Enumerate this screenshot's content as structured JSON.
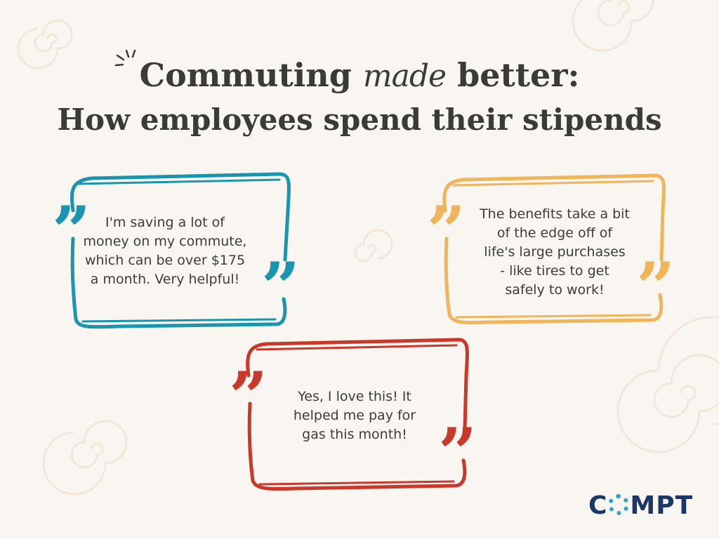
{
  "title": {
    "line1_before": "Commuting",
    "line1_script": "made",
    "line1_after": "better:",
    "line2": "How employees spend their stipends"
  },
  "colors": {
    "background": "#f9f6f1",
    "text": "#3c3c38",
    "teal": "#1a95ad",
    "orange": "#f0b55a",
    "red": "#c8392b",
    "logo_navy": "#1c3765",
    "logo_blue": "#2ba3d6"
  },
  "quotes": [
    {
      "color": "teal",
      "lines": [
        "I'm saving a lot of",
        "money on my commute,",
        "which can be over $175",
        "a month. Very helpful!"
      ]
    },
    {
      "color": "orange",
      "lines": [
        "The benefits take a bit",
        "of the edge off of",
        "life's large purchases",
        "- like tires to get",
        "safely to work!"
      ]
    },
    {
      "color": "red",
      "lines": [
        "Yes, I love this! It",
        "helped me pay for",
        "gas this month!"
      ]
    }
  ],
  "quote_mark": "”",
  "logo": {
    "before": "C",
    "after": "MPT",
    "text": "COMPT"
  }
}
